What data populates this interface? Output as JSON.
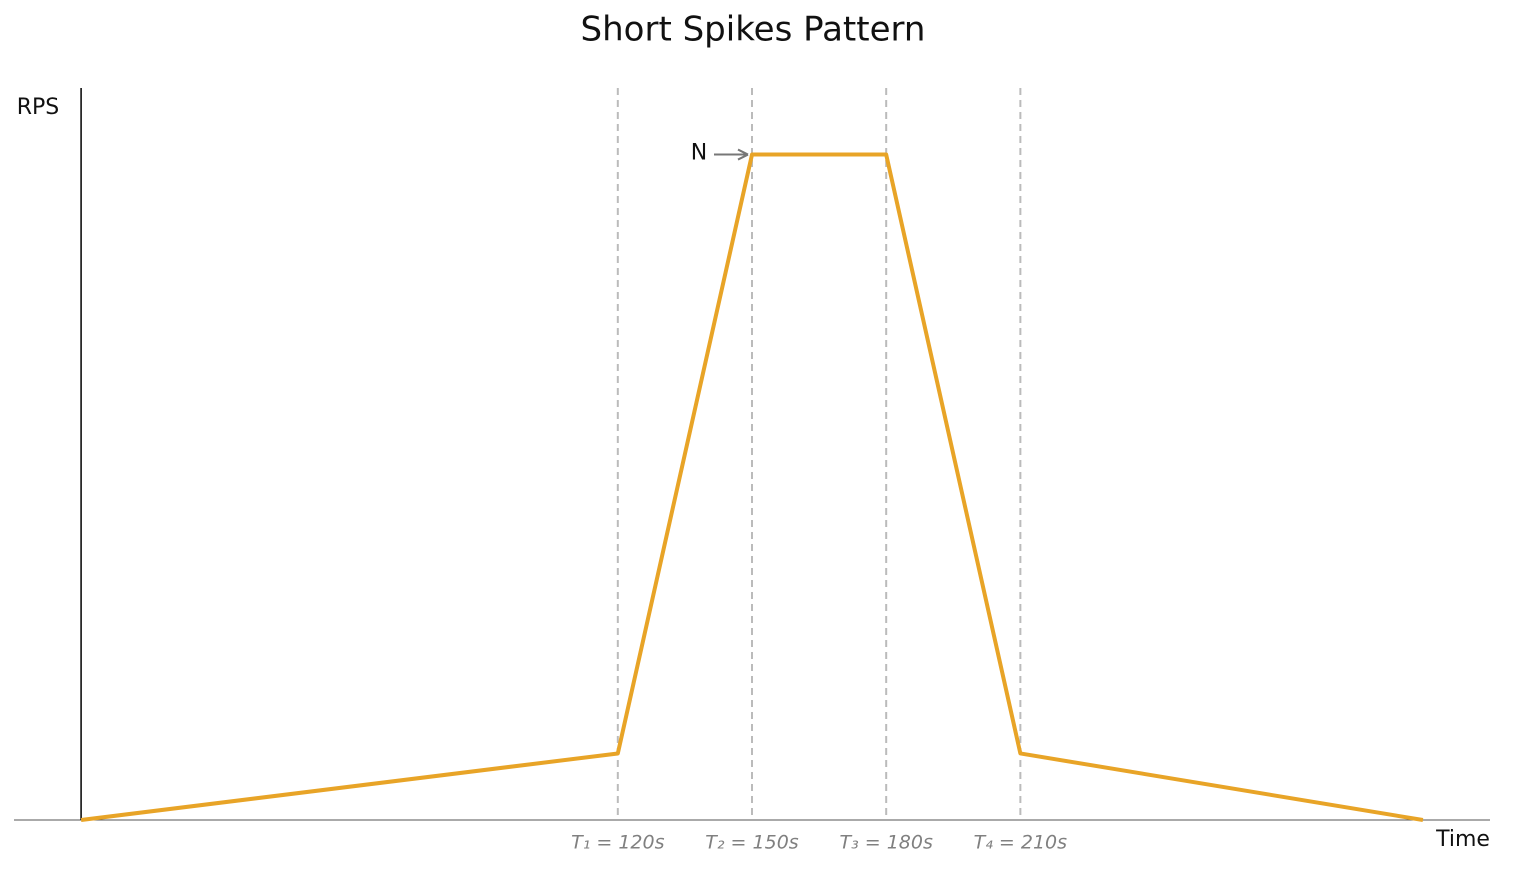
{
  "chart_data": {
    "type": "line",
    "title": "Short Spikes Pattern",
    "y_label": "RPS",
    "x_label": "Time",
    "x": [
      0,
      120,
      150,
      180,
      210,
      300
    ],
    "values": [
      0,
      0.1,
      1,
      1,
      0.1,
      0
    ],
    "color": "#e8a427",
    "xlim": [
      -15,
      315
    ],
    "ylim": [
      0,
      1.1
    ],
    "xticks": [
      {
        "value": 120,
        "label": "T₁ = 120s"
      },
      {
        "value": 150,
        "label": "T₂ = 150s"
      },
      {
        "value": 180,
        "label": "T₃ = 180s"
      },
      {
        "value": 210,
        "label": "T₄ = 210s"
      }
    ],
    "annotation": {
      "text": "N",
      "x": 150,
      "y": 1
    }
  }
}
